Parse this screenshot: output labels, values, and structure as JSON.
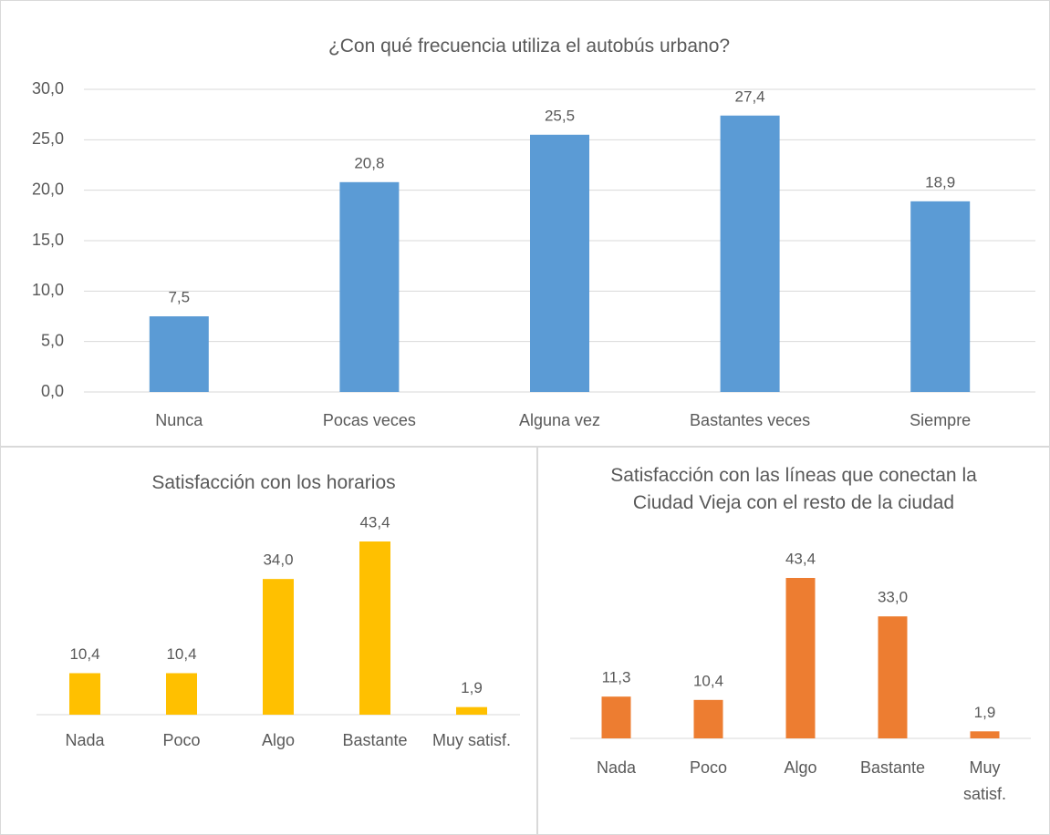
{
  "chart_data": [
    {
      "type": "bar",
      "title": "¿Con qué frecuencia utiliza el autobús urbano?",
      "categories": [
        "Nunca",
        "Pocas veces",
        "Alguna vez",
        "Bastantes veces",
        "Siempre"
      ],
      "values": [
        7.5,
        20.8,
        25.5,
        27.4,
        18.9
      ],
      "value_labels": [
        "7,5",
        "20,8",
        "25,5",
        "27,4",
        "18,9"
      ],
      "color": "#5b9bd5",
      "ylim": [
        0,
        30
      ],
      "yticks": [
        {
          "value": 0,
          "label": "0,0"
        },
        {
          "value": 5,
          "label": "5,0"
        },
        {
          "value": 10,
          "label": "10,0"
        },
        {
          "value": 15,
          "label": "15,0"
        },
        {
          "value": 20,
          "label": "20,0"
        },
        {
          "value": 25,
          "label": "25,0"
        },
        {
          "value": 30,
          "label": "30,0"
        }
      ],
      "grid": true
    },
    {
      "type": "bar",
      "title": "Satisfacción con los horarios",
      "categories": [
        "Nada",
        "Poco",
        "Algo",
        "Bastante",
        "Muy satisf."
      ],
      "values": [
        10.4,
        10.4,
        34.0,
        43.4,
        1.9
      ],
      "value_labels": [
        "10,4",
        "10,4",
        "34,0",
        "43,4",
        "1,9"
      ],
      "color": "#ffc000"
    },
    {
      "type": "bar",
      "title": "Satisfacción con las líneas que conectan la Ciudad Vieja con el resto de la ciudad",
      "categories": [
        "Nada",
        "Poco",
        "Algo",
        "Bastante",
        "Muy satisf."
      ],
      "values": [
        11.3,
        10.4,
        43.4,
        33.0,
        1.9
      ],
      "value_labels": [
        "11,3",
        "10,4",
        "43,4",
        "33,0",
        "1,9"
      ],
      "color": "#ed7d31"
    }
  ]
}
